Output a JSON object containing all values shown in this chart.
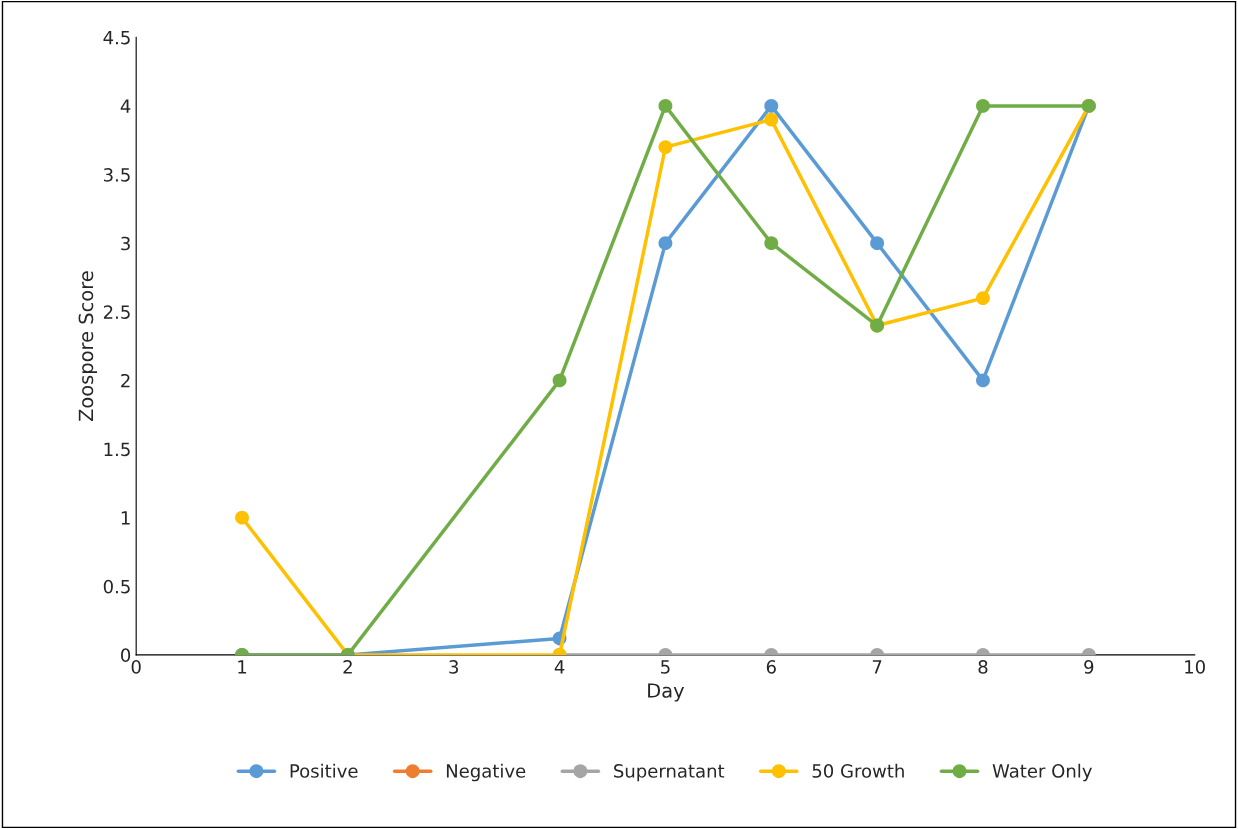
{
  "chart_data": {
    "type": "line",
    "xlabel": "Day",
    "ylabel": "Zoospore Score",
    "xlim": [
      0,
      10
    ],
    "xticks": [
      0,
      1,
      2,
      3,
      4,
      5,
      6,
      7,
      8,
      9,
      10
    ],
    "ylim": [
      0,
      4.5
    ],
    "yticks": [
      0,
      0.5,
      1,
      1.5,
      2,
      2.5,
      3,
      3.5,
      4,
      4.5
    ],
    "grid": false,
    "legend": "bottom",
    "marker": "circle",
    "line_style": "solid",
    "series": [
      {
        "name": "Positive",
        "color": "#5b9bd5",
        "x": [
          1,
          2,
          4,
          5,
          6,
          7,
          8,
          9
        ],
        "values": [
          0,
          0,
          0.12,
          3,
          4,
          3,
          2,
          4
        ]
      },
      {
        "name": "Negative",
        "color": "#ed7d31"
      },
      {
        "name": "Supernatant",
        "color": "#a5a5a5",
        "x": [
          4,
          5,
          6,
          7,
          8,
          9
        ],
        "values": [
          0,
          0,
          0,
          0,
          0,
          0
        ]
      },
      {
        "name": "50 Growth",
        "color": "#ffc000",
        "x": [
          1,
          2,
          4,
          5,
          6,
          7,
          8,
          9
        ],
        "values": [
          1,
          0,
          0,
          3.7,
          3.9,
          2.4,
          2.6,
          4
        ]
      },
      {
        "name": "Water Only",
        "color": "#70ad47",
        "x": [
          1,
          2,
          4,
          5,
          6,
          7,
          8,
          9
        ],
        "values": [
          0,
          0,
          2,
          4,
          3,
          2.4,
          4,
          4
        ]
      }
    ]
  }
}
